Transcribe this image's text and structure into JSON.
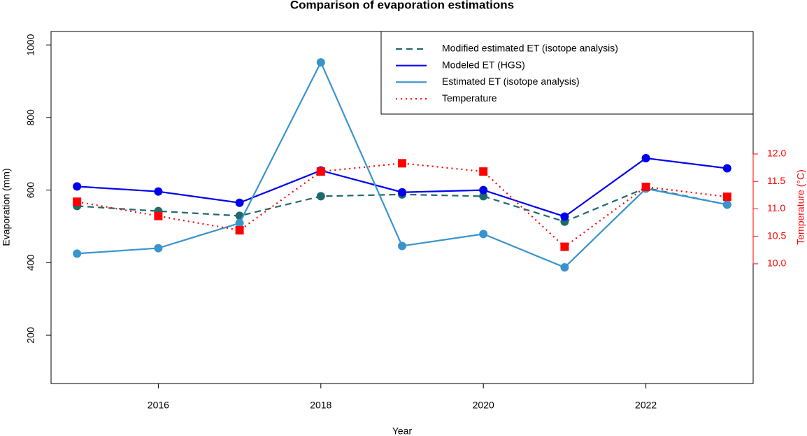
{
  "chart_data": {
    "type": "line",
    "title": "Comparison of evaporation estimations",
    "x_label": "Year",
    "y_label": "Evaporation (mm)",
    "y2_label": "Temperature (°C)",
    "x": [
      2015,
      2016,
      2017,
      2018,
      2019,
      2020,
      2021,
      2022,
      2023
    ],
    "series": [
      {
        "name": "Modified estimated ET (isotope analysis)",
        "color": "#1f6b6b",
        "dash": "dashed",
        "marker": "circle",
        "values": [
          556,
          542,
          529,
          583,
          588,
          583,
          513,
          606,
          560
        ]
      },
      {
        "name": "Modeled ET (HGS)",
        "color": "#0000ee",
        "dash": "solid",
        "marker": "circle",
        "values": [
          610,
          596,
          565,
          654,
          594,
          600,
          527,
          688,
          660
        ]
      },
      {
        "name": "Estimated ET (isotope analysis)",
        "color": "#3a94cc",
        "dash": "solid",
        "marker": "circle",
        "values": [
          425,
          440,
          509,
          952,
          446,
          479,
          387,
          604,
          560
        ]
      },
      {
        "name": "Temperature",
        "color": "#ff0000",
        "dash": "dotted",
        "marker": "square",
        "axis": "y2",
        "values": [
          11.13,
          10.87,
          10.61,
          11.68,
          11.83,
          11.68,
          10.31,
          11.4,
          11.22
        ]
      }
    ],
    "xlim": [
      2014.68,
      2023.32
    ],
    "xticks": [
      2016,
      2018,
      2020,
      2022
    ],
    "ylim": [
      67,
      1037
    ],
    "yticks": [
      200,
      400,
      600,
      800,
      1000
    ],
    "y2lim": [
      7.82,
      14.23
    ],
    "y2ticks": [
      {
        "value": 10,
        "label": "10.0"
      },
      {
        "value": 10.5,
        "label": "10.5"
      },
      {
        "value": 11,
        "label": "11.0"
      },
      {
        "value": 11.5,
        "label": "11.5"
      },
      {
        "value": 12,
        "label": "12.0"
      }
    ],
    "y2_color": "#ff0000",
    "legend": "top-right",
    "grid": false
  }
}
